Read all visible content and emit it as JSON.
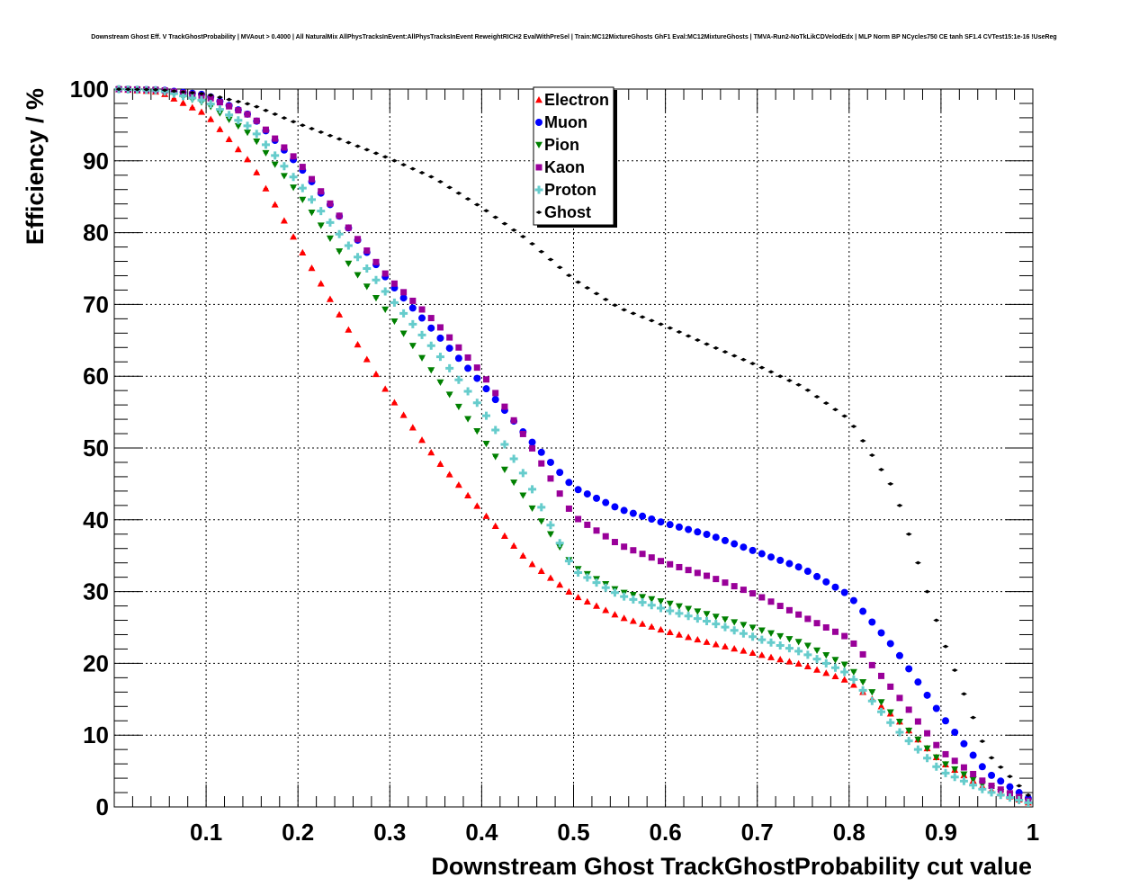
{
  "chart_data": {
    "type": "scatter",
    "title": "Downstream Ghost Eff. V TrackGhostProbability | MVAout > 0.4000 | All NaturalMix AllPhysTracksInEvent:AllPhysTracksInEvent ReweightRICH2 EvalWithPreSel | Train:MC12MixtureGhosts GhF1 Eval:MC12MixtureGhosts | TMVA-Run2-NoTkLikCDVelodEdx | MLP Norm BP NCycles750 CE tanh SF1.4 CVTest15:1e-16 !UseReg",
    "xlabel": "Downstream Ghost TrackGhostProbability cut value",
    "ylabel": "Efficiency / %",
    "xlim": [
      0,
      1
    ],
    "ylim": [
      0,
      100
    ],
    "x_ticks": [
      "0.1",
      "0.2",
      "0.3",
      "0.4",
      "0.5",
      "0.6",
      "0.7",
      "0.8",
      "0.9",
      "1"
    ],
    "y_ticks": [
      "0",
      "10",
      "20",
      "30",
      "40",
      "50",
      "60",
      "70",
      "80",
      "90",
      "100"
    ],
    "grid": true,
    "legend_position": "top-center",
    "x_knots": [
      0.0,
      0.05,
      0.1,
      0.15,
      0.2,
      0.25,
      0.3,
      0.35,
      0.4,
      0.45,
      0.5,
      0.55,
      0.6,
      0.65,
      0.7,
      0.75,
      0.8,
      0.85,
      0.9,
      0.95,
      1.0
    ],
    "series": [
      {
        "name": "Electron",
        "color": "#ff0000",
        "marker": "triangle-up",
        "values": [
          100,
          99.6,
          96.5,
          89.5,
          78.3,
          67.5,
          57.2,
          48.5,
          41.2,
          34.3,
          29.5,
          26.5,
          24.5,
          22.8,
          21.3,
          19.8,
          17.5,
          12.5,
          6.3,
          2.5,
          0.4
        ]
      },
      {
        "name": "Muon",
        "color": "#0000ff",
        "marker": "circle",
        "values": [
          100,
          99.9,
          99.2,
          96.2,
          89.5,
          81.5,
          73.0,
          66.0,
          59.0,
          51.5,
          44.5,
          41.5,
          39.5,
          37.8,
          35.5,
          33.2,
          29.5,
          22.0,
          12.8,
          4.8,
          0.8
        ]
      },
      {
        "name": "Pion",
        "color": "#008000",
        "marker": "triangle-down",
        "values": [
          100,
          99.8,
          98.0,
          93.5,
          85.5,
          76.5,
          68.5,
          60.0,
          51.5,
          42.5,
          33.5,
          30.0,
          28.5,
          26.7,
          24.8,
          22.8,
          19.5,
          12.5,
          6.3,
          2.8,
          0.5
        ]
      },
      {
        "name": "Kaon",
        "color": "#990099",
        "marker": "square",
        "values": [
          100,
          99.9,
          99.0,
          96.2,
          90.0,
          81.5,
          73.5,
          67.5,
          60.5,
          51.0,
          40.5,
          36.5,
          34.0,
          32.0,
          29.5,
          26.5,
          23.5,
          16.0,
          7.8,
          3.2,
          0.6
        ]
      },
      {
        "name": "Proton",
        "color": "#66cccc",
        "marker": "plus",
        "values": [
          100,
          99.8,
          98.3,
          94.5,
          87.0,
          79.0,
          71.0,
          63.5,
          55.5,
          45.5,
          33.0,
          29.5,
          27.5,
          25.7,
          23.5,
          21.5,
          18.5,
          11.0,
          5.0,
          2.2,
          0.4
        ]
      },
      {
        "name": "Ghost",
        "color": "#000000",
        "marker": "star",
        "values": [
          100,
          99.9,
          99.3,
          97.8,
          95.2,
          92.8,
          90.3,
          87.5,
          83.5,
          79.0,
          73.5,
          69.5,
          67.0,
          64.2,
          61.5,
          58.5,
          54.0,
          44.0,
          24.0,
          7.5,
          1.0
        ]
      }
    ]
  }
}
